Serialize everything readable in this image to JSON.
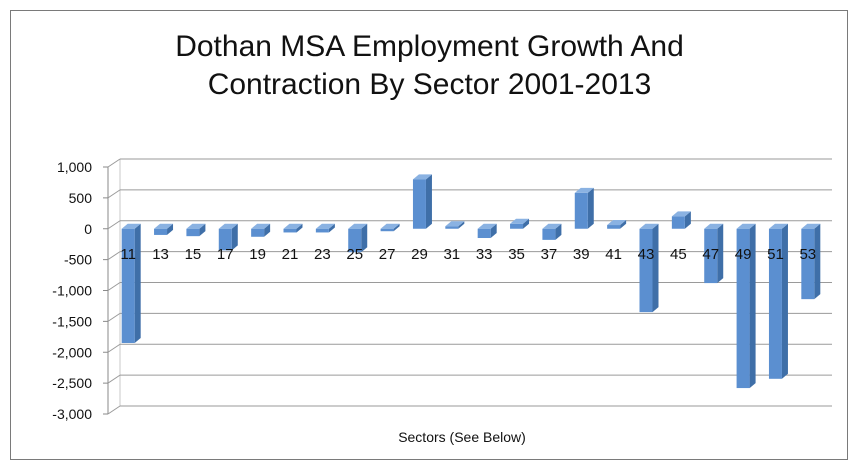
{
  "chart_data": {
    "type": "bar",
    "title": "Dothan MSA Employment Growth And Contraction By Sector 2001-2013",
    "title_lines": [
      "Dothan MSA Employment Growth And",
      "Contraction By Sector 2001-2013"
    ],
    "xlabel": "Sectors (See Below)",
    "ylabel": "",
    "ylim": [
      -3000,
      1000
    ],
    "yticks": [
      1000,
      500,
      0,
      -500,
      -1000,
      -1500,
      -2000,
      -2500,
      -3000
    ],
    "ytick_labels": [
      "1,000",
      "500",
      "0",
      "-500",
      "-1,000",
      "-1,500",
      "-2,000",
      "-2,500",
      "-3,000"
    ],
    "grid": true,
    "style": "3d-column",
    "bar_color": "#5b8fd0",
    "categories": [
      "11",
      "13",
      "15",
      "17",
      "19",
      "21",
      "23",
      "25",
      "27",
      "29",
      "31",
      "33",
      "35",
      "37",
      "39",
      "41",
      "43",
      "45",
      "47",
      "49",
      "51",
      "53"
    ],
    "values": [
      -1850,
      -100,
      -120,
      -350,
      -130,
      -60,
      -60,
      -380,
      -40,
      800,
      40,
      -150,
      80,
      -180,
      580,
      60,
      -1350,
      200,
      -880,
      -2580,
      -2430,
      -1140
    ]
  }
}
